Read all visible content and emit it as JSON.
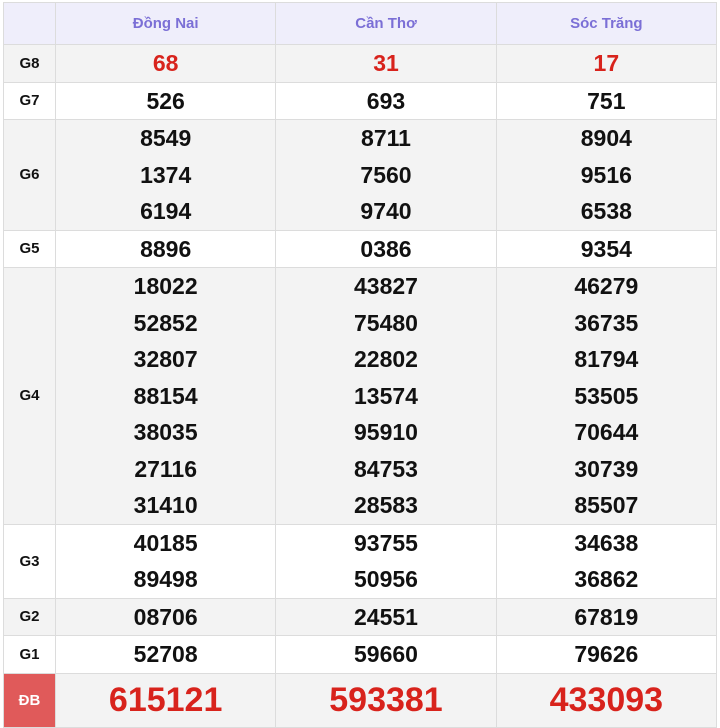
{
  "columns": [
    "Đồng Nai",
    "Cần Thơ",
    "Sóc Trăng"
  ],
  "rows": [
    {
      "label": "G8",
      "values": [
        [
          "68"
        ],
        [
          "31"
        ],
        [
          "17"
        ]
      ]
    },
    {
      "label": "G7",
      "values": [
        [
          "526"
        ],
        [
          "693"
        ],
        [
          "751"
        ]
      ]
    },
    {
      "label": "G6",
      "values": [
        [
          "8549",
          "1374",
          "6194"
        ],
        [
          "8711",
          "7560",
          "9740"
        ],
        [
          "8904",
          "9516",
          "6538"
        ]
      ]
    },
    {
      "label": "G5",
      "values": [
        [
          "8896"
        ],
        [
          "0386"
        ],
        [
          "9354"
        ]
      ]
    },
    {
      "label": "G4",
      "values": [
        [
          "18022",
          "52852",
          "32807",
          "88154",
          "38035",
          "27116",
          "31410"
        ],
        [
          "43827",
          "75480",
          "22802",
          "13574",
          "95910",
          "84753",
          "28583"
        ],
        [
          "46279",
          "36735",
          "81794",
          "53505",
          "70644",
          "30739",
          "85507"
        ]
      ]
    },
    {
      "label": "G3",
      "values": [
        [
          "40185",
          "89498"
        ],
        [
          "93755",
          "50956"
        ],
        [
          "34638",
          "36862"
        ]
      ]
    },
    {
      "label": "G2",
      "values": [
        [
          "08706"
        ],
        [
          "24551"
        ],
        [
          "67819"
        ]
      ]
    },
    {
      "label": "G1",
      "values": [
        [
          "52708"
        ],
        [
          "59660"
        ],
        [
          "79626"
        ]
      ]
    },
    {
      "label": "ĐB",
      "values": [
        [
          "615121"
        ],
        [
          "593381"
        ],
        [
          "433093"
        ]
      ]
    }
  ],
  "colors": {
    "header_text": "#7b6fd6",
    "highlight": "#d8231c",
    "special_label_bg": "#e05a5a"
  }
}
